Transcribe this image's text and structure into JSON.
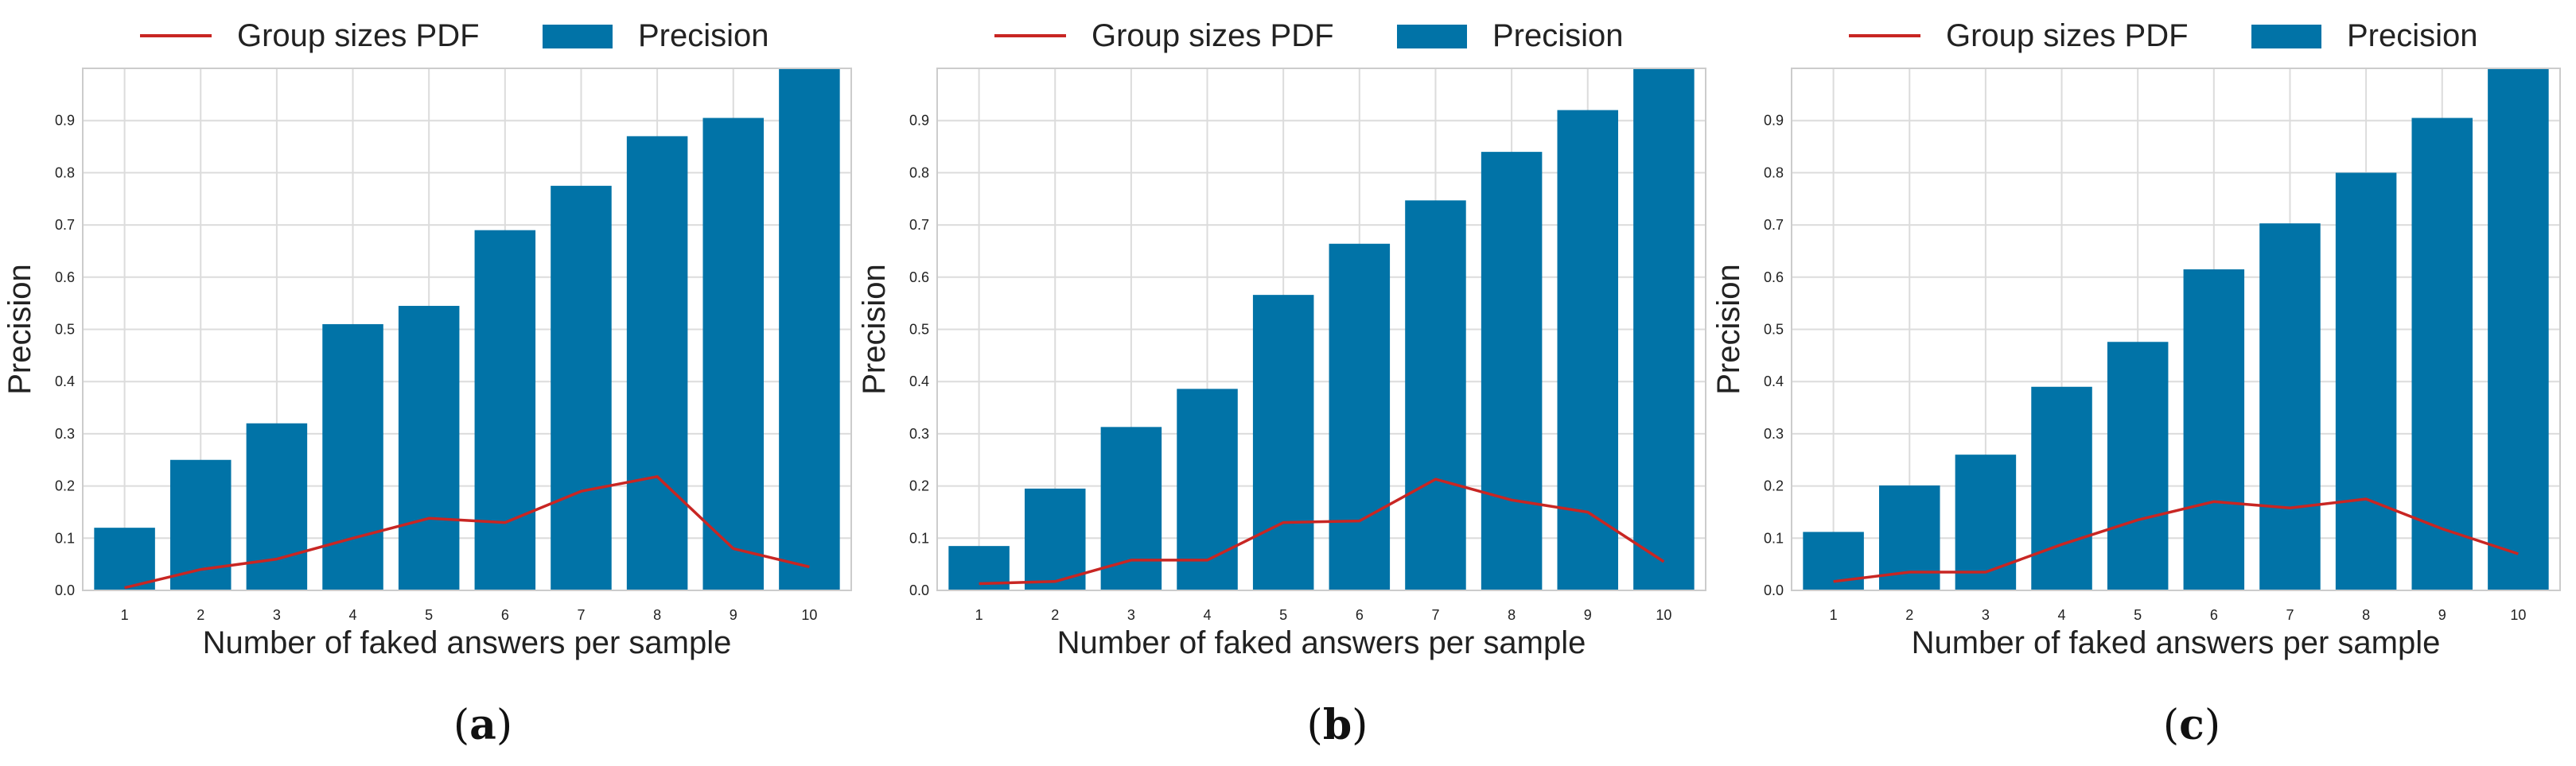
{
  "chart_data": [
    {
      "type": "bar",
      "caption_letter": "a",
      "xlabel": "Number of faked answers per sample",
      "ylabel": "Precision",
      "ylim": [
        0,
        1.0
      ],
      "yticks": [
        "0.0",
        "0.1",
        "0.2",
        "0.3",
        "0.4",
        "0.5",
        "0.6",
        "0.7",
        "0.8",
        "0.9"
      ],
      "categories": [
        "1",
        "2",
        "3",
        "4",
        "5",
        "6",
        "7",
        "8",
        "9",
        "10"
      ],
      "legend": {
        "line_label": "Group sizes PDF",
        "bar_label": "Precision",
        "placement": "top"
      },
      "series": [
        {
          "name": "Precision",
          "kind": "bar",
          "color": "#0173a7",
          "values": [
            0.12,
            0.25,
            0.32,
            0.51,
            0.545,
            0.69,
            0.775,
            0.87,
            0.905,
            1.0
          ]
        },
        {
          "name": "Group sizes PDF",
          "kind": "line",
          "color": "#c82623",
          "values": [
            0.005,
            0.04,
            0.06,
            0.1,
            0.138,
            0.13,
            0.19,
            0.218,
            0.08,
            0.045
          ]
        }
      ]
    },
    {
      "type": "bar",
      "caption_letter": "b",
      "xlabel": "Number of faked answers per sample",
      "ylabel": "Precision",
      "ylim": [
        0,
        1.0
      ],
      "yticks": [
        "0.0",
        "0.1",
        "0.2",
        "0.3",
        "0.4",
        "0.5",
        "0.6",
        "0.7",
        "0.8",
        "0.9"
      ],
      "categories": [
        "1",
        "2",
        "3",
        "4",
        "5",
        "6",
        "7",
        "8",
        "9",
        "10"
      ],
      "legend": {
        "line_label": "Group sizes PDF",
        "bar_label": "Precision",
        "placement": "top"
      },
      "series": [
        {
          "name": "Precision",
          "kind": "bar",
          "color": "#0173a7",
          "values": [
            0.085,
            0.195,
            0.313,
            0.386,
            0.566,
            0.664,
            0.747,
            0.84,
            0.92,
            1.0
          ]
        },
        {
          "name": "Group sizes PDF",
          "kind": "line",
          "color": "#c82623",
          "values": [
            0.013,
            0.017,
            0.058,
            0.058,
            0.13,
            0.133,
            0.213,
            0.173,
            0.15,
            0.055
          ]
        }
      ]
    },
    {
      "type": "bar",
      "caption_letter": "c",
      "xlabel": "Number of faked answers per sample",
      "ylabel": "Precision",
      "ylim": [
        0,
        1.0
      ],
      "yticks": [
        "0.0",
        "0.1",
        "0.2",
        "0.3",
        "0.4",
        "0.5",
        "0.6",
        "0.7",
        "0.8",
        "0.9"
      ],
      "categories": [
        "1",
        "2",
        "3",
        "4",
        "5",
        "6",
        "7",
        "8",
        "9",
        "10"
      ],
      "legend": {
        "line_label": "Group sizes PDF",
        "bar_label": "Precision",
        "placement": "top"
      },
      "series": [
        {
          "name": "Precision",
          "kind": "bar",
          "color": "#0173a7",
          "values": [
            0.112,
            0.201,
            0.26,
            0.39,
            0.476,
            0.615,
            0.703,
            0.8,
            0.905,
            1.0
          ]
        },
        {
          "name": "Group sizes PDF",
          "kind": "line",
          "color": "#c82623",
          "values": [
            0.017,
            0.035,
            0.035,
            0.088,
            0.135,
            0.17,
            0.158,
            0.175,
            0.118,
            0.07
          ]
        }
      ]
    }
  ]
}
